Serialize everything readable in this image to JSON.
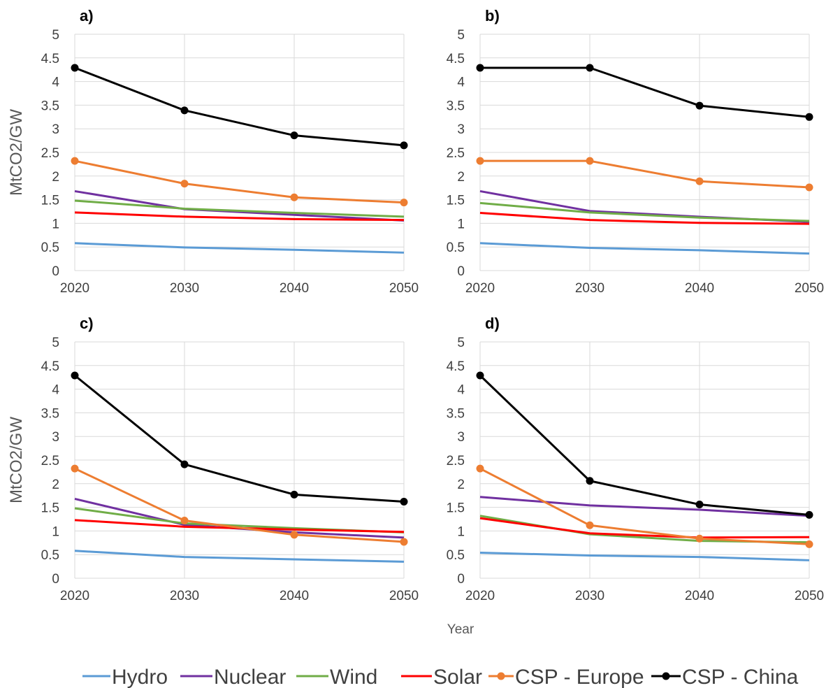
{
  "chart_data": {
    "type": "line",
    "xlabel": "Year",
    "ylabel": "MtCO2/GW",
    "x": [
      2020,
      2030,
      2040,
      2050
    ],
    "xlim": [
      2020,
      2050
    ],
    "ylim": [
      0,
      5
    ],
    "yticks": [
      "0",
      "0.5",
      "1",
      "1.5",
      "2",
      "2.5",
      "3",
      "3.5",
      "4",
      "4.5",
      "5"
    ],
    "xticks": [
      "2020",
      "2030",
      "2040",
      "2050"
    ],
    "grid": true,
    "legend_position": "bottom",
    "series_styles": [
      {
        "name": "Hydro",
        "color": "#5b9bd5",
        "markers": false
      },
      {
        "name": "Nuclear",
        "color": "#7030a0",
        "markers": false
      },
      {
        "name": "Wind",
        "color": "#70ad47",
        "markers": false
      },
      {
        "name": "Solar",
        "color": "#ff0000",
        "markers": false
      },
      {
        "name": "CSP - Europe",
        "color": "#ed7d31",
        "markers": true
      },
      {
        "name": "CSP - China",
        "color": "#000000",
        "markers": true
      }
    ],
    "panels": [
      {
        "label": "a)",
        "series": [
          {
            "name": "Hydro",
            "values": [
              0.58,
              0.49,
              0.44,
              0.38
            ]
          },
          {
            "name": "Nuclear",
            "values": [
              1.68,
              1.3,
              1.18,
              1.06
            ]
          },
          {
            "name": "Wind",
            "values": [
              1.48,
              1.31,
              1.22,
              1.14
            ]
          },
          {
            "name": "Solar",
            "values": [
              1.23,
              1.14,
              1.09,
              1.07
            ]
          },
          {
            "name": "CSP - Europe",
            "values": [
              2.32,
              1.84,
              1.55,
              1.44
            ]
          },
          {
            "name": "CSP - China",
            "values": [
              4.29,
              3.39,
              2.86,
              2.65
            ]
          }
        ]
      },
      {
        "label": "b)",
        "series": [
          {
            "name": "Hydro",
            "values": [
              0.58,
              0.48,
              0.43,
              0.36
            ]
          },
          {
            "name": "Nuclear",
            "values": [
              1.68,
              1.26,
              1.14,
              1.03
            ]
          },
          {
            "name": "Wind",
            "values": [
              1.43,
              1.23,
              1.12,
              1.05
            ]
          },
          {
            "name": "Solar",
            "values": [
              1.22,
              1.07,
              1.01,
              0.99
            ]
          },
          {
            "name": "CSP - Europe",
            "values": [
              2.32,
              2.32,
              1.89,
              1.76
            ]
          },
          {
            "name": "CSP - China",
            "values": [
              4.29,
              4.29,
              3.49,
              3.25
            ]
          }
        ]
      },
      {
        "label": "c)",
        "series": [
          {
            "name": "Hydro",
            "values": [
              0.58,
              0.45,
              0.4,
              0.35
            ]
          },
          {
            "name": "Nuclear",
            "values": [
              1.68,
              1.13,
              0.97,
              0.86
            ]
          },
          {
            "name": "Wind",
            "values": [
              1.48,
              1.16,
              1.06,
              0.97
            ]
          },
          {
            "name": "Solar",
            "values": [
              1.23,
              1.09,
              1.03,
              0.98
            ]
          },
          {
            "name": "CSP - Europe",
            "values": [
              2.32,
              1.22,
              0.92,
              0.77
            ]
          },
          {
            "name": "CSP - China",
            "values": [
              4.29,
              2.41,
              1.77,
              1.62
            ]
          }
        ]
      },
      {
        "label": "d)",
        "series": [
          {
            "name": "Hydro",
            "values": [
              0.54,
              0.48,
              0.45,
              0.38
            ]
          },
          {
            "name": "Nuclear",
            "values": [
              1.72,
              1.54,
              1.45,
              1.32
            ]
          },
          {
            "name": "Wind",
            "values": [
              1.32,
              0.93,
              0.79,
              0.76
            ]
          },
          {
            "name": "Solar",
            "values": [
              1.27,
              0.95,
              0.86,
              0.87
            ]
          },
          {
            "name": "CSP - Europe",
            "values": [
              2.32,
              1.12,
              0.84,
              0.72
            ]
          },
          {
            "name": "CSP - China",
            "values": [
              4.29,
              2.06,
              1.56,
              1.34
            ]
          }
        ]
      }
    ]
  }
}
